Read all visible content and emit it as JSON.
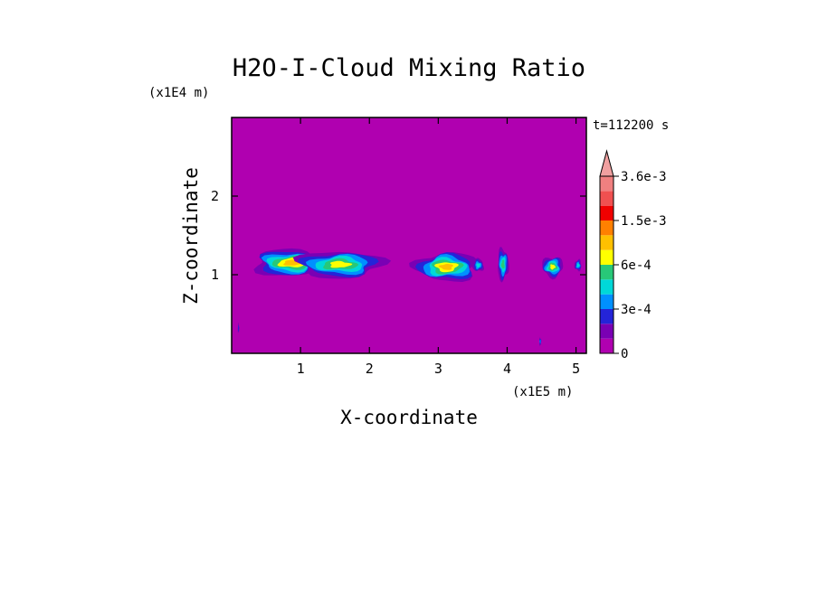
{
  "chart_data": {
    "type": "heatmap",
    "title": "H2O-I-Cloud Mixing Ratio",
    "xlabel": "X-coordinate",
    "ylabel": "Z-coordinate",
    "x_unit": "(x1E5 m)",
    "y_unit": "(x1E4 m)",
    "time_label": "t=112200 s",
    "xlim": [
      0,
      5.15
    ],
    "ylim": [
      0,
      3.0
    ],
    "x_ticks": [
      1,
      2,
      3,
      4,
      5
    ],
    "x_tick_labels": [
      "1",
      "2",
      "3",
      "4",
      "5"
    ],
    "y_ticks": [
      1,
      2
    ],
    "y_tick_labels": [
      "1",
      "2"
    ],
    "background_color": "#b000b0",
    "colorbar": {
      "levels": [
        0,
        0.0001,
        0.0002,
        0.0003,
        0.0004,
        0.0005,
        0.0006,
        0.0009,
        0.0012,
        0.0015,
        0.0022,
        0.0029,
        0.0036
      ],
      "colors": [
        "#b000b0",
        "#7a00b4",
        "#2424d8",
        "#0090ff",
        "#00d8d8",
        "#28c878",
        "#ffff00",
        "#ffc000",
        "#ff8000",
        "#f00000",
        "#f05050",
        "#f08080",
        "#f0a0a0"
      ],
      "tick_values": [
        0,
        0.0003,
        0.0006,
        0.0015,
        0.0036
      ],
      "tick_labels": [
        "0",
        "3e-4",
        "6e-4",
        "1.5e-3",
        "3.6e-3"
      ]
    },
    "features": [
      {
        "name": "cloud-1",
        "x_center": 0.87,
        "z_center": 1.15,
        "x_halfwidth": 0.55,
        "z_halfwidth": 0.17,
        "core_level": 7
      },
      {
        "name": "cloud-2",
        "x_center": 1.57,
        "z_center": 1.13,
        "x_halfwidth": 0.62,
        "z_halfwidth": 0.17,
        "core_level": 6
      },
      {
        "name": "cloud-3",
        "x_center": 3.12,
        "z_center": 1.1,
        "x_halfwidth": 0.45,
        "z_halfwidth": 0.18,
        "core_level": 7
      },
      {
        "name": "cloud-4",
        "x_center": 3.58,
        "z_center": 1.12,
        "x_halfwidth": 0.08,
        "z_halfwidth": 0.08,
        "core_level": 4
      },
      {
        "name": "cloud-5",
        "x_center": 3.94,
        "z_center": 1.13,
        "x_halfwidth": 0.08,
        "z_halfwidth": 0.2,
        "core_level": 5
      },
      {
        "name": "cloud-6",
        "x_center": 4.66,
        "z_center": 1.1,
        "x_halfwidth": 0.15,
        "z_halfwidth": 0.13,
        "core_level": 6
      },
      {
        "name": "cloud-7",
        "x_center": 5.03,
        "z_center": 1.12,
        "x_halfwidth": 0.05,
        "z_halfwidth": 0.07,
        "core_level": 4
      },
      {
        "name": "speck-1",
        "x_center": 0.1,
        "z_center": 0.32,
        "x_halfwidth": 0.01,
        "z_halfwidth": 0.06,
        "core_level": 2
      },
      {
        "name": "speck-2",
        "x_center": 4.48,
        "z_center": 0.15,
        "x_halfwidth": 0.015,
        "z_halfwidth": 0.05,
        "core_level": 3
      }
    ]
  }
}
